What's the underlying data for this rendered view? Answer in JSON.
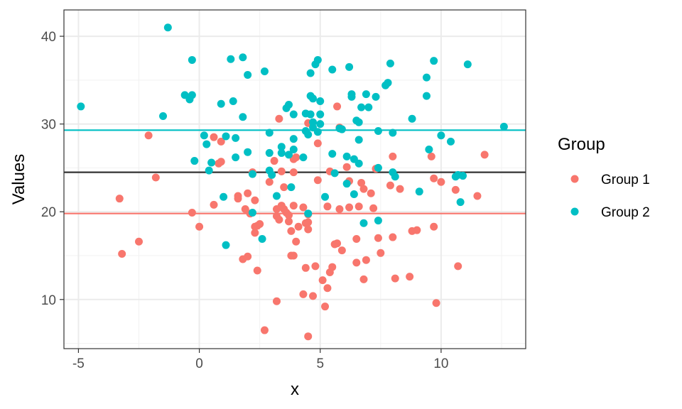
{
  "chart_data": {
    "type": "scatter",
    "title": "",
    "xlabel": "x",
    "ylabel": "Values",
    "xlim": [
      -5.6,
      13.5
    ],
    "ylim": [
      4.4,
      43.0
    ],
    "x_ticks": [
      -5,
      0,
      5,
      10
    ],
    "y_ticks": [
      10,
      20,
      30,
      40
    ],
    "grid": true,
    "legend": {
      "title": "Group",
      "position": "right"
    },
    "reference_lines": [
      {
        "y": 24.5,
        "color": "#333333"
      },
      {
        "y": 29.3,
        "color": "#00BFC4"
      },
      {
        "y": 19.8,
        "color": "#F8766D"
      }
    ],
    "series": [
      {
        "name": "Group 1",
        "color": "#F8766D",
        "points": [
          [
            -3.3,
            21.5
          ],
          [
            -3.2,
            15.2
          ],
          [
            -2.5,
            16.6
          ],
          [
            -2.1,
            28.7
          ],
          [
            -1.8,
            23.9
          ],
          [
            -0.3,
            19.9
          ],
          [
            0.0,
            18.3
          ],
          [
            0.6,
            20.8
          ],
          [
            0.6,
            28.5
          ],
          [
            0.8,
            25.5
          ],
          [
            0.9,
            28.0
          ],
          [
            0.9,
            25.7
          ],
          [
            1.6,
            21.8
          ],
          [
            1.6,
            21.5
          ],
          [
            1.8,
            14.6
          ],
          [
            1.9,
            20.3
          ],
          [
            2.0,
            14.9
          ],
          [
            2.0,
            22.1
          ],
          [
            2.1,
            19.8
          ],
          [
            2.2,
            24.5
          ],
          [
            2.3,
            17.6
          ],
          [
            2.3,
            18.3
          ],
          [
            2.3,
            21.3
          ],
          [
            2.4,
            18.4
          ],
          [
            2.4,
            13.3
          ],
          [
            2.5,
            18.6
          ],
          [
            2.7,
            6.5
          ],
          [
            2.9,
            23.4
          ],
          [
            3.1,
            25.8
          ],
          [
            3.2,
            20.3
          ],
          [
            3.2,
            19.5
          ],
          [
            3.2,
            9.8
          ],
          [
            3.3,
            30.6
          ],
          [
            3.3,
            19.1
          ],
          [
            3.4,
            20.7
          ],
          [
            3.4,
            24.6
          ],
          [
            3.5,
            22.8
          ],
          [
            3.5,
            20.3
          ],
          [
            3.6,
            19.9
          ],
          [
            3.7,
            18.9
          ],
          [
            3.7,
            19.6
          ],
          [
            3.8,
            15.0
          ],
          [
            3.8,
            17.8
          ],
          [
            3.9,
            20.7
          ],
          [
            3.9,
            26.0
          ],
          [
            3.9,
            24.5
          ],
          [
            3.9,
            15.0
          ],
          [
            4.0,
            26.2
          ],
          [
            4.0,
            16.6
          ],
          [
            4.1,
            18.3
          ],
          [
            4.3,
            20.5
          ],
          [
            4.3,
            10.6
          ],
          [
            4.4,
            13.6
          ],
          [
            4.4,
            18.7
          ],
          [
            4.5,
            5.8
          ],
          [
            4.5,
            18.0
          ],
          [
            4.5,
            18.8
          ],
          [
            4.5,
            19.7
          ],
          [
            4.5,
            30.1
          ],
          [
            4.7,
            10.4
          ],
          [
            4.8,
            13.8
          ],
          [
            4.9,
            23.6
          ],
          [
            4.9,
            27.8
          ],
          [
            5.1,
            12.2
          ],
          [
            5.2,
            9.2
          ],
          [
            5.3,
            20.6
          ],
          [
            5.3,
            11.3
          ],
          [
            5.4,
            13.1
          ],
          [
            5.4,
            24.6
          ],
          [
            5.5,
            13.7
          ],
          [
            5.6,
            16.3
          ],
          [
            5.7,
            16.4
          ],
          [
            5.7,
            32.0
          ],
          [
            5.8,
            20.3
          ],
          [
            5.8,
            29.6
          ],
          [
            5.9,
            15.6
          ],
          [
            6.1,
            25.1
          ],
          [
            6.2,
            20.5
          ],
          [
            6.2,
            23.5
          ],
          [
            6.5,
            14.2
          ],
          [
            6.5,
            16.9
          ],
          [
            6.6,
            20.6
          ],
          [
            6.7,
            23.3
          ],
          [
            6.8,
            22.6
          ],
          [
            6.8,
            12.3
          ],
          [
            6.9,
            14.5
          ],
          [
            7.1,
            22.1
          ],
          [
            7.2,
            20.4
          ],
          [
            7.3,
            24.9
          ],
          [
            7.4,
            17.0
          ],
          [
            7.5,
            15.3
          ],
          [
            7.9,
            23.0
          ],
          [
            8.0,
            26.3
          ],
          [
            8.0,
            17.1
          ],
          [
            8.1,
            12.4
          ],
          [
            8.3,
            22.6
          ],
          [
            8.7,
            12.6
          ],
          [
            8.8,
            17.8
          ],
          [
            9.0,
            17.9
          ],
          [
            9.6,
            26.3
          ],
          [
            9.7,
            23.8
          ],
          [
            9.7,
            18.3
          ],
          [
            9.8,
            9.6
          ],
          [
            10.0,
            23.4
          ],
          [
            10.6,
            22.5
          ],
          [
            10.7,
            13.8
          ],
          [
            11.5,
            21.8
          ],
          [
            11.8,
            26.5
          ]
        ]
      },
      {
        "name": "Group 2",
        "color": "#00BFC4",
        "points": [
          [
            -4.9,
            32.0
          ],
          [
            -1.3,
            41.0
          ],
          [
            -1.5,
            30.9
          ],
          [
            -0.6,
            33.3
          ],
          [
            -0.4,
            32.8
          ],
          [
            -0.3,
            33.3
          ],
          [
            -0.3,
            37.3
          ],
          [
            -0.2,
            25.8
          ],
          [
            0.2,
            28.7
          ],
          [
            0.3,
            27.7
          ],
          [
            0.4,
            24.7
          ],
          [
            0.5,
            25.6
          ],
          [
            0.9,
            32.3
          ],
          [
            1.0,
            21.7
          ],
          [
            1.1,
            16.2
          ],
          [
            1.1,
            28.6
          ],
          [
            1.3,
            37.4
          ],
          [
            1.4,
            32.6
          ],
          [
            1.5,
            26.2
          ],
          [
            1.5,
            28.4
          ],
          [
            1.8,
            37.6
          ],
          [
            1.8,
            30.8
          ],
          [
            2.0,
            35.6
          ],
          [
            2.0,
            26.8
          ],
          [
            2.2,
            19.9
          ],
          [
            2.2,
            24.3
          ],
          [
            2.6,
            16.9
          ],
          [
            2.7,
            36.0
          ],
          [
            2.9,
            24.7
          ],
          [
            2.9,
            26.7
          ],
          [
            2.9,
            29.0
          ],
          [
            3.0,
            24.2
          ],
          [
            3.2,
            21.8
          ],
          [
            3.4,
            26.7
          ],
          [
            3.4,
            27.4
          ],
          [
            3.6,
            31.8
          ],
          [
            3.7,
            32.2
          ],
          [
            3.7,
            26.5
          ],
          [
            3.8,
            22.8
          ],
          [
            3.9,
            27.1
          ],
          [
            3.9,
            31.1
          ],
          [
            3.9,
            28.3
          ],
          [
            4.3,
            26.2
          ],
          [
            4.4,
            29.2
          ],
          [
            4.4,
            31.2
          ],
          [
            4.5,
            28.8
          ],
          [
            4.5,
            19.8
          ],
          [
            4.6,
            35.8
          ],
          [
            4.6,
            33.2
          ],
          [
            4.6,
            31.1
          ],
          [
            4.7,
            30.2
          ],
          [
            4.7,
            29.6
          ],
          [
            4.7,
            32.9
          ],
          [
            4.8,
            36.8
          ],
          [
            4.9,
            37.3
          ],
          [
            4.9,
            29.1
          ],
          [
            5.0,
            31.1
          ],
          [
            5.0,
            30.0
          ],
          [
            5.0,
            32.6
          ],
          [
            5.2,
            21.7
          ],
          [
            5.5,
            26.6
          ],
          [
            5.5,
            36.2
          ],
          [
            5.6,
            24.4
          ],
          [
            5.8,
            29.5
          ],
          [
            5.9,
            29.4
          ],
          [
            6.1,
            26.3
          ],
          [
            6.1,
            23.2
          ],
          [
            6.2,
            36.5
          ],
          [
            6.3,
            33.1
          ],
          [
            6.3,
            33.4
          ],
          [
            6.4,
            26.0
          ],
          [
            6.4,
            22.0
          ],
          [
            6.5,
            30.4
          ],
          [
            6.6,
            30.2
          ],
          [
            6.6,
            25.5
          ],
          [
            6.6,
            28.2
          ],
          [
            6.7,
            31.9
          ],
          [
            6.8,
            18.7
          ],
          [
            6.9,
            33.4
          ],
          [
            7.0,
            31.9
          ],
          [
            7.3,
            33.1
          ],
          [
            7.4,
            29.2
          ],
          [
            7.4,
            25.0
          ],
          [
            7.4,
            19.0
          ],
          [
            7.7,
            34.4
          ],
          [
            7.8,
            34.7
          ],
          [
            7.9,
            36.9
          ],
          [
            8.0,
            29.0
          ],
          [
            8.0,
            24.5
          ],
          [
            8.1,
            24.0
          ],
          [
            8.8,
            30.6
          ],
          [
            9.1,
            22.3
          ],
          [
            9.4,
            33.2
          ],
          [
            9.4,
            35.3
          ],
          [
            9.5,
            27.1
          ],
          [
            9.7,
            37.2
          ],
          [
            10.0,
            28.7
          ],
          [
            10.4,
            28.0
          ],
          [
            10.6,
            24.0
          ],
          [
            10.7,
            24.2
          ],
          [
            10.8,
            21.1
          ],
          [
            10.9,
            24.1
          ],
          [
            11.1,
            36.8
          ],
          [
            12.6,
            29.7
          ]
        ]
      }
    ]
  }
}
